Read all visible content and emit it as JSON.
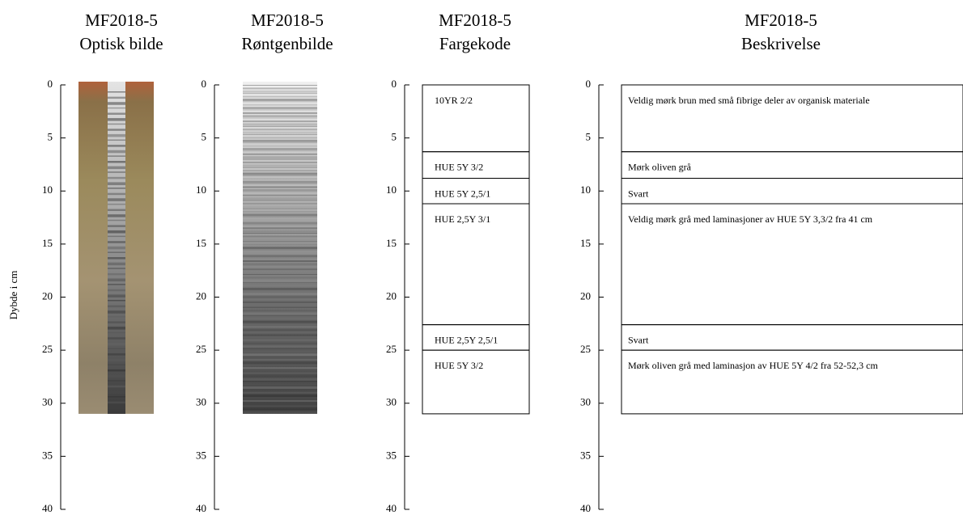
{
  "depth_axis": {
    "label": "Dybde i cm",
    "ylim": [
      0,
      40
    ],
    "yticks": [
      0,
      5,
      10,
      15,
      20,
      25,
      30,
      35,
      40
    ]
  },
  "panels": [
    {
      "title": [
        "MF2018-5",
        "Optisk bilde"
      ],
      "core_length": 31
    },
    {
      "title": [
        "MF2018-5",
        "Røntgenbilde"
      ],
      "core_length": 31
    },
    {
      "title": [
        "MF2018-5",
        "Fargekode"
      ],
      "layers": [
        {
          "top": 0,
          "bottom": 6.3,
          "label": "10YR  2/2"
        },
        {
          "top": 6.3,
          "bottom": 8.8,
          "label": "HUE  5Y  3/2"
        },
        {
          "top": 8.8,
          "bottom": 11.2,
          "label": "HUE  5Y  2,5/1"
        },
        {
          "top": 11.2,
          "bottom": 22.6,
          "label": "HUE  2,5Y  3/1"
        },
        {
          "top": 22.6,
          "bottom": 25.0,
          "label": "HUE  2,5Y  2,5/1"
        },
        {
          "top": 25.0,
          "bottom": 31.0,
          "label": "HUE  5Y  3/2"
        }
      ]
    },
    {
      "title": [
        "MF2018-5",
        "Beskrivelse"
      ],
      "layers": [
        {
          "top": 0,
          "bottom": 6.3,
          "label": "Veldig  mørk  brun med  små  fibrige  deler  av  organisk materiale"
        },
        {
          "top": 6.3,
          "bottom": 8.8,
          "label": "Mørk oliven grå"
        },
        {
          "top": 8.8,
          "bottom": 11.2,
          "label": "Svart"
        },
        {
          "top": 11.2,
          "bottom": 22.6,
          "label": "Veldig  mørk  grå med laminasjoner  av HUE  5Y  3,3/2  fra  41  cm"
        },
        {
          "top": 22.6,
          "bottom": 25.0,
          "label": "Svart"
        },
        {
          "top": 25.0,
          "bottom": 31.0,
          "label": "Mørk  oliven  grå med laminasjon  av HUE  5Y  4/2  fra  52-52,3   cm"
        }
      ]
    }
  ]
}
